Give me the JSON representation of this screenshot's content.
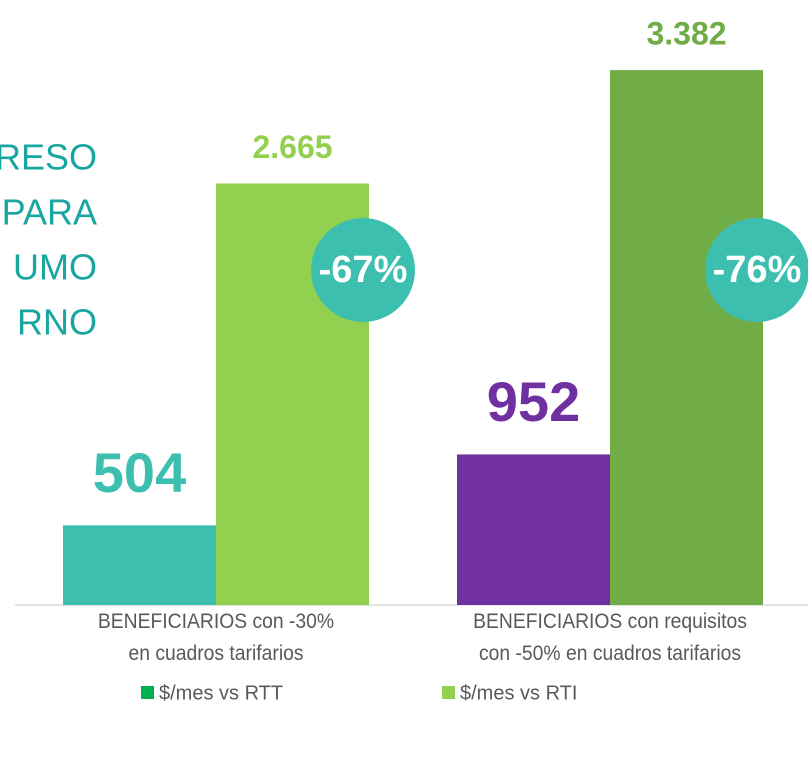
{
  "chart_data": {
    "type": "bar",
    "annotations": [
      "RESO",
      "PARA",
      "UMO",
      "RNO"
    ],
    "categories": [
      "BENEFICIARIOS con -30%\nen cuadros tarifarios",
      "BENEFICIARIOS con requisitos\ncon -50% en cuadros tarifarios"
    ],
    "series": [
      {
        "name": "$/mes vs RTT",
        "color": "#00b050",
        "colors": [
          "#3dbfb0",
          "#7030a0"
        ],
        "values": [
          504,
          952
        ],
        "value_labels": [
          "504",
          "952"
        ]
      },
      {
        "name": "$/mes vs RTI",
        "color": "#92d050",
        "colors": [
          "#92d050",
          "#70ad47"
        ],
        "values": [
          2665,
          3382
        ],
        "value_labels": [
          "2.665",
          "3.382"
        ]
      }
    ],
    "badges": [
      "-67%",
      "-76%"
    ],
    "ylim": [
      0,
      3800
    ]
  }
}
